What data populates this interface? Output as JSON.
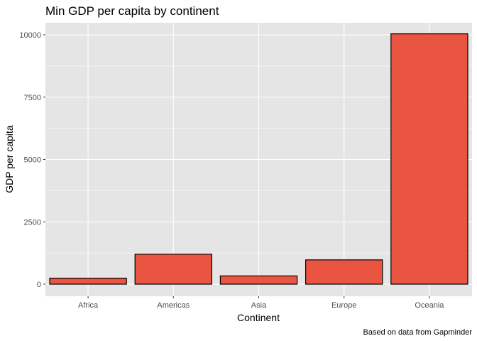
{
  "chart_data": {
    "type": "bar",
    "title": "Min GDP per capita by continent",
    "xlabel": "Continent",
    "ylabel": "GDP per capita",
    "caption": "Based on data from Gapminder",
    "categories": [
      "Africa",
      "Americas",
      "Asia",
      "Europe",
      "Oceania"
    ],
    "values": [
      241,
      1202,
      331,
      974,
      10040
    ],
    "ylim": [
      0,
      10600
    ],
    "yticks": [
      0,
      2500,
      5000,
      7500,
      10000
    ],
    "ytick_labels": [
      "0",
      "2500",
      "5000",
      "7500",
      "10000"
    ],
    "grid": true,
    "legend": "none",
    "colors": {
      "bar_fill": "#e95541",
      "bar_stroke": "#000000",
      "panel_bg": "#e5e5e5",
      "grid": "#ffffff"
    }
  }
}
